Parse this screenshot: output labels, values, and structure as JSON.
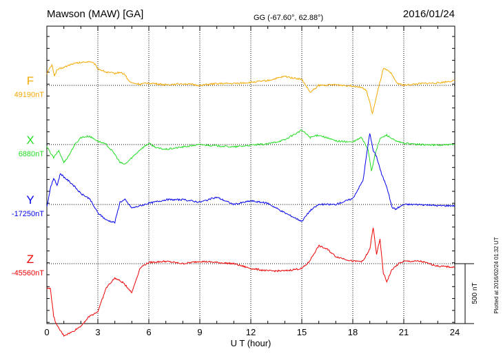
{
  "header": {
    "station": "Mawson (MAW)  [GA]",
    "coords": "GG (-67.60°,  62.88°)",
    "date": "2016/01/24"
  },
  "footer": {
    "plotted": "Plotted at 2016/02/24 01:32 UT"
  },
  "chart_data": {
    "type": "line",
    "title": "Mawson (MAW)  [GA]",
    "xlabel": "U T (hour)",
    "ylabel": "",
    "xlim": [
      0,
      24
    ],
    "x_ticks": [
      0,
      3,
      6,
      9,
      12,
      15,
      18,
      21,
      24
    ],
    "scale_bar": {
      "label": "500 nT",
      "value_nT": 500
    },
    "grid": "dotted vertical lines every 3 h, dotted baseline per component",
    "series": [
      {
        "name": "F",
        "baseline_label": "49190nT",
        "color": "#f5a800",
        "unit": "nT",
        "x": [
          0,
          0.3,
          0.45,
          0.6,
          1,
          1.5,
          2,
          2.5,
          2.8,
          3,
          3.5,
          4,
          4.3,
          4.6,
          4.8,
          5,
          5.5,
          6,
          7,
          8,
          9,
          10,
          11,
          12,
          13,
          14,
          15,
          15.5,
          16,
          17,
          18,
          18.5,
          18.8,
          19,
          19.15,
          19.3,
          19.5,
          19.8,
          20.2,
          20.6,
          21,
          22,
          23,
          24
        ],
        "values": [
          100,
          170,
          80,
          130,
          150,
          180,
          190,
          200,
          180,
          140,
          110,
          100,
          110,
          90,
          40,
          20,
          10,
          20,
          5,
          15,
          0,
          15,
          15,
          25,
          40,
          75,
          50,
          -60,
          0,
          5,
          -5,
          -15,
          -45,
          -140,
          -240,
          -150,
          -30,
          140,
          110,
          20,
          0,
          15,
          20,
          40
        ]
      },
      {
        "name": "X",
        "baseline_label": "6880nT",
        "color": "#22dd22",
        "unit": "nT",
        "x": [
          0,
          0.4,
          0.7,
          1,
          1.3,
          1.6,
          2,
          2.5,
          3,
          3.5,
          4,
          4.3,
          4.6,
          5,
          5.5,
          6,
          6.5,
          7,
          8,
          9,
          10,
          11,
          12,
          13,
          14,
          15,
          15.5,
          16,
          17,
          18,
          18.5,
          18.9,
          19.1,
          19.3,
          19.6,
          20,
          20.5,
          21,
          22,
          23,
          24
        ],
        "values": [
          -20,
          -110,
          -50,
          -150,
          -90,
          -10,
          60,
          70,
          30,
          0,
          -80,
          -150,
          -165,
          -110,
          -40,
          10,
          -30,
          -40,
          -20,
          0,
          -10,
          -20,
          -5,
          5,
          40,
          120,
          60,
          80,
          30,
          20,
          60,
          -40,
          -220,
          -90,
          50,
          80,
          30,
          10,
          0,
          -5,
          0
        ]
      },
      {
        "name": "Y",
        "baseline_label": "-17250nT",
        "color": "#0000ee",
        "unit": "nT",
        "x": [
          0,
          0.2,
          0.4,
          0.6,
          0.8,
          1,
          1.5,
          2,
          2.5,
          3,
          3.5,
          4,
          4.3,
          4.6,
          5,
          6,
          7,
          8,
          9,
          10,
          11,
          12,
          13,
          14,
          15,
          15.5,
          16,
          17,
          18,
          18.6,
          19,
          19.2,
          19.4,
          19.7,
          20,
          20.3,
          20.5,
          21,
          22,
          23,
          24
        ],
        "values": [
          -20,
          130,
          220,
          160,
          260,
          230,
          170,
          90,
          50,
          -70,
          -130,
          -150,
          20,
          40,
          -30,
          10,
          40,
          40,
          20,
          60,
          0,
          30,
          10,
          -70,
          -140,
          -50,
          0,
          0,
          50,
          200,
          600,
          450,
          400,
          250,
          150,
          -20,
          -40,
          0,
          0,
          -10,
          -10
        ]
      },
      {
        "name": "Z",
        "baseline_label": "-45560nT",
        "color": "#ee0000",
        "unit": "nT",
        "x": [
          0,
          0.2,
          0.4,
          0.6,
          1,
          1.5,
          2,
          2.5,
          3,
          3.5,
          4,
          4.5,
          5,
          5.5,
          6,
          7,
          8,
          9,
          10,
          11,
          12,
          13,
          14,
          15,
          15.4,
          16,
          16.5,
          17,
          18,
          18.6,
          19,
          19.2,
          19.4,
          19.6,
          19.8,
          20,
          20.3,
          20.7,
          21,
          22,
          23,
          24
        ],
        "values": [
          -210,
          -200,
          -440,
          -520,
          -600,
          -570,
          -520,
          -440,
          -400,
          -200,
          -120,
          -160,
          -240,
          -30,
          10,
          20,
          0,
          20,
          10,
          0,
          -40,
          -60,
          -60,
          -40,
          10,
          150,
          120,
          60,
          20,
          20,
          120,
          300,
          80,
          200,
          -80,
          -150,
          -50,
          0,
          20,
          20,
          -20,
          -30
        ]
      }
    ]
  }
}
